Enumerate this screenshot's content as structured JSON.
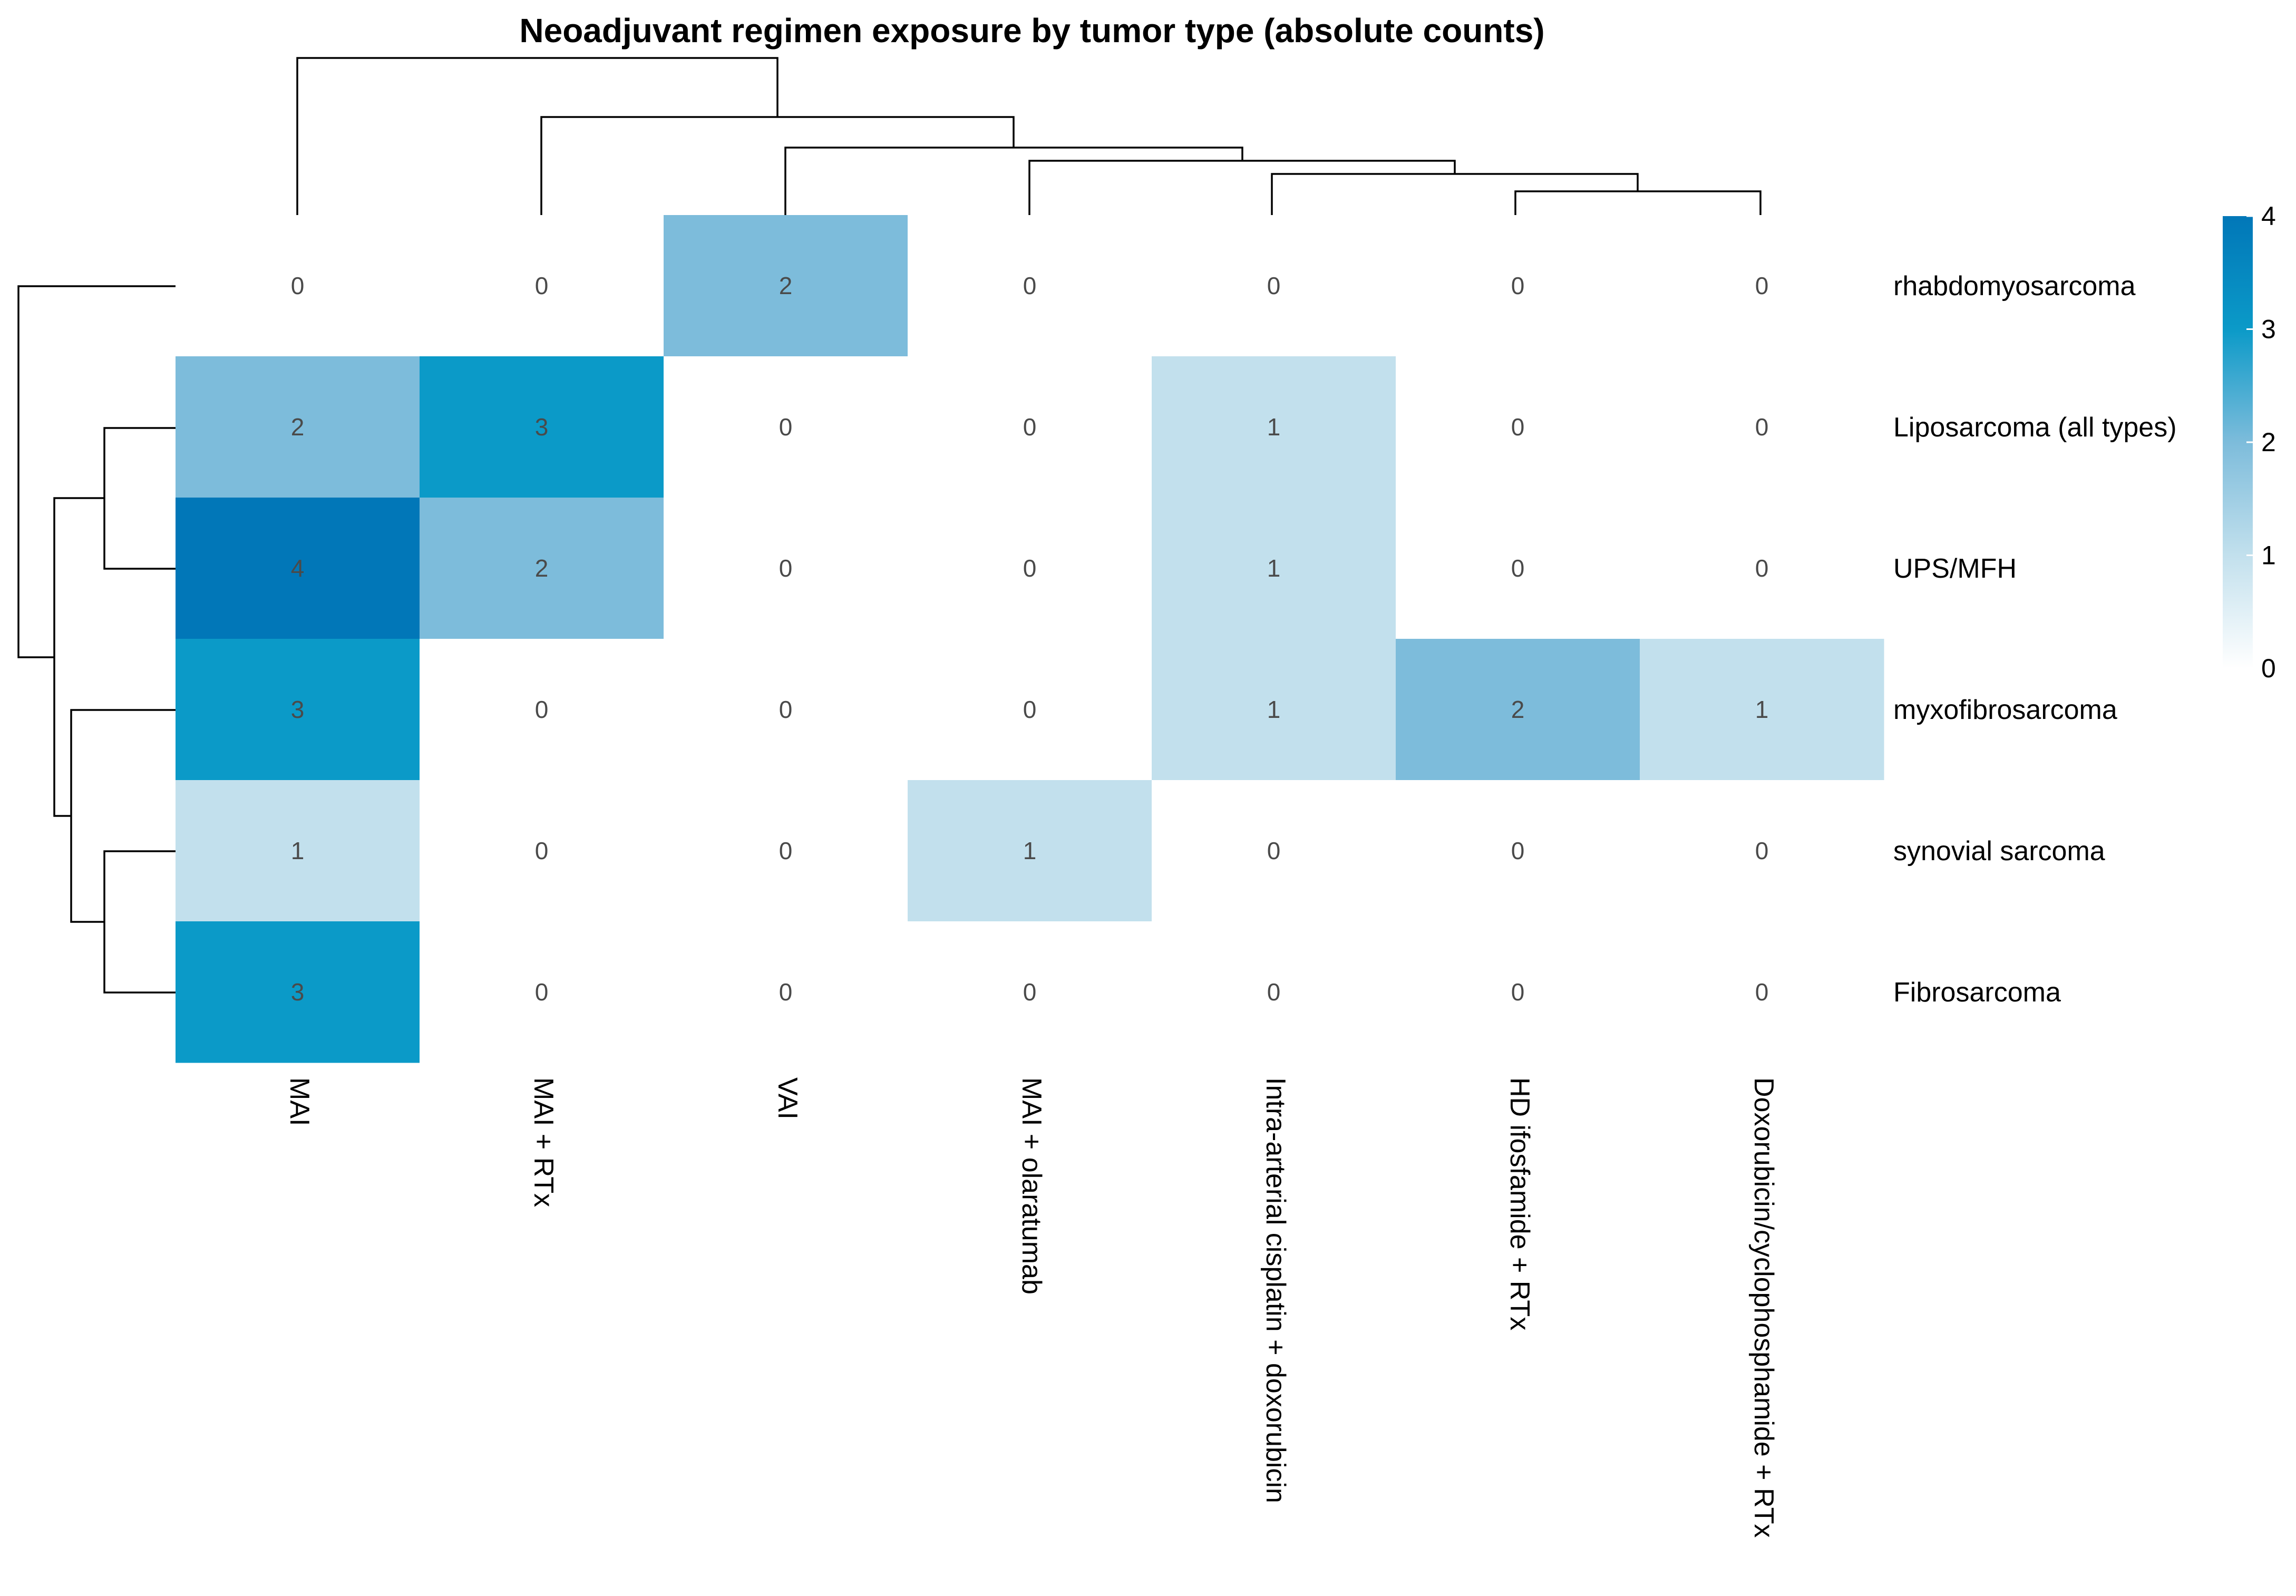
{
  "chart_data": {
    "type": "heatmap",
    "title": "Neoadjuvant regimen exposure by tumor type (absolute counts)",
    "columns": [
      "MAI",
      "MAI + RTx",
      "VAI",
      "MAI + olaratumab",
      "Intra-arterial cisplatin + doxorubicin",
      "HD ifosfamide + RTx",
      "Doxorubicin/cyclophosphamide + RTx"
    ],
    "rows": [
      "rhabdomyosarcoma",
      "Liposarcoma (all types)",
      "UPS/MFH",
      "myxofibrosarcoma",
      "synovial sarcoma",
      "Fibrosarcoma"
    ],
    "values": [
      [
        0,
        0,
        2,
        0,
        0,
        0,
        0
      ],
      [
        2,
        3,
        0,
        0,
        1,
        0,
        0
      ],
      [
        4,
        2,
        0,
        0,
        1,
        0,
        0
      ],
      [
        3,
        0,
        0,
        0,
        1,
        2,
        1
      ],
      [
        1,
        0,
        0,
        1,
        0,
        0,
        0
      ],
      [
        3,
        0,
        0,
        0,
        0,
        0,
        0
      ]
    ],
    "value_range": [
      0,
      4
    ],
    "colorscale": [
      "#ffffff",
      "#c2e0ed",
      "#7dbcdb",
      "#0b9ac8",
      "#0177b8"
    ],
    "legend": {
      "ticks": [
        "0",
        "1",
        "2",
        "3",
        "4"
      ],
      "placement": "right"
    },
    "row_dendrogram": true,
    "column_dendrogram": true,
    "cell_labels": true
  }
}
